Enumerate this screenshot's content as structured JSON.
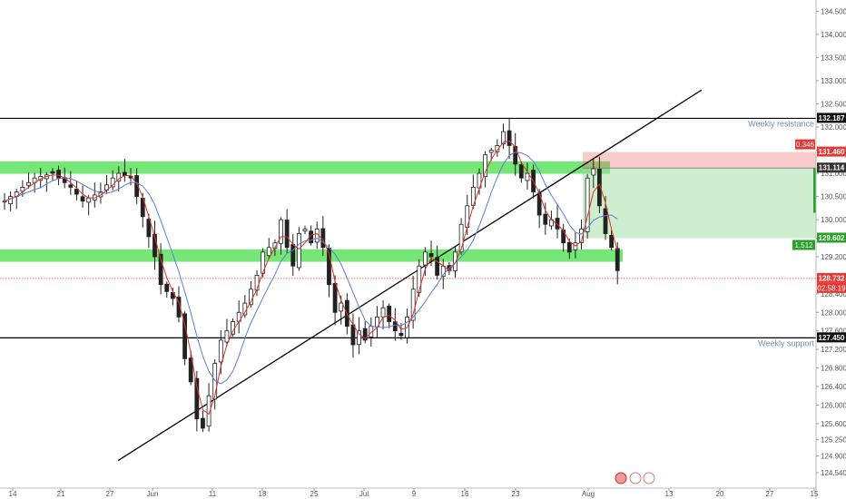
{
  "chart_data": {
    "type": "candlestick",
    "x_ticks": [
      "14",
      "21",
      "27",
      "Jun",
      "11",
      "18",
      "25",
      "Jul",
      "9",
      "16",
      "23",
      "Aug",
      "13",
      "20",
      "27",
      "15"
    ],
    "y_ticks": [
      124.54,
      124.9,
      125.25,
      125.6,
      126.0,
      126.4,
      126.8,
      127.2,
      127.6,
      128.0,
      128.4,
      129.2,
      129.6,
      130.0,
      130.5,
      131.0,
      131.5,
      132.0,
      132.5,
      133.0,
      133.5,
      134.0,
      134.5
    ],
    "ylim": [
      124.3,
      135.0
    ],
    "levels": [
      {
        "name": "weekly-resistance",
        "value": 132.187,
        "label": "132.187",
        "annotation": "Weekly resistance",
        "color": "#000000"
      },
      {
        "name": "weekly-support",
        "value": 127.45,
        "label": "127.450",
        "annotation": "Weekly support",
        "color": "#000000"
      }
    ],
    "zones": [
      {
        "name": "upper-zone",
        "low": 131.05,
        "high": 131.2,
        "color": "#5ee35e"
      },
      {
        "name": "lower-zone",
        "low": 129.15,
        "high": 129.3,
        "color": "#5ee35e"
      }
    ],
    "position": {
      "entry": 131.114,
      "entry_label": "131.114",
      "stop": 131.46,
      "stop_label": "131.460",
      "target": 129.602,
      "target_label": "129.602",
      "risk_label": "0.346",
      "reward_label": "1.512",
      "risk_color": "#f26b6b",
      "reward_color": "#2aa12a"
    },
    "current_price": {
      "value": 128.732,
      "label": "128.732",
      "countdown": "02:58:19",
      "color": "#e53935"
    },
    "trendline": {
      "start": {
        "x": "27",
        "y": 124.8
      },
      "end": {
        "x": "27 Aug",
        "y": 132.8
      }
    },
    "series_path": [
      [
        0,
        130.4
      ],
      [
        2,
        130.6
      ],
      [
        5,
        130.9
      ],
      [
        8,
        131.0
      ],
      [
        11,
        130.7
      ],
      [
        13,
        130.4
      ],
      [
        16,
        130.6
      ],
      [
        18,
        130.9
      ],
      [
        19,
        131.0
      ],
      [
        21,
        130.9
      ],
      [
        22,
        130.5
      ],
      [
        25,
        129.2
      ],
      [
        26,
        128.6
      ],
      [
        28,
        128.3
      ],
      [
        29,
        127.9
      ],
      [
        30,
        127.0
      ],
      [
        31,
        126.5
      ],
      [
        32,
        125.7
      ],
      [
        33,
        125.5
      ],
      [
        34,
        126.2
      ],
      [
        35,
        126.9
      ],
      [
        36,
        127.4
      ],
      [
        38,
        127.8
      ],
      [
        40,
        128.2
      ],
      [
        42,
        128.8
      ],
      [
        43,
        129.3
      ],
      [
        45,
        129.5
      ],
      [
        46,
        130.0
      ],
      [
        47,
        129.4
      ],
      [
        48,
        129.0
      ],
      [
        49,
        129.7
      ],
      [
        50,
        129.8
      ],
      [
        51,
        129.5
      ],
      [
        52,
        129.8
      ],
      [
        53,
        129.4
      ],
      [
        54,
        128.6
      ],
      [
        55,
        128.0
      ],
      [
        56,
        128.2
      ],
      [
        57,
        127.7
      ],
      [
        58,
        127.3
      ],
      [
        59,
        127.6
      ],
      [
        60,
        127.4
      ],
      [
        61,
        127.7
      ],
      [
        62,
        127.9
      ],
      [
        63,
        128.1
      ],
      [
        64,
        127.8
      ],
      [
        65,
        127.6
      ],
      [
        66,
        127.5
      ],
      [
        67,
        127.9
      ],
      [
        68,
        128.5
      ],
      [
        69,
        129.0
      ],
      [
        70,
        129.3
      ],
      [
        71,
        129.2
      ],
      [
        72,
        128.8
      ],
      [
        73,
        129.0
      ],
      [
        74,
        128.9
      ],
      [
        75,
        129.3
      ],
      [
        76,
        129.9
      ],
      [
        77,
        130.3
      ],
      [
        78,
        130.7
      ],
      [
        79,
        131.0
      ],
      [
        80,
        131.4
      ],
      [
        81,
        131.5
      ],
      [
        82,
        131.6
      ],
      [
        83,
        131.9
      ],
      [
        84,
        131.6
      ],
      [
        85,
        131.2
      ],
      [
        86,
        130.9
      ],
      [
        87,
        131.0
      ],
      [
        88,
        130.6
      ],
      [
        89,
        130.1
      ],
      [
        90,
        129.9
      ],
      [
        91,
        130.0
      ],
      [
        92,
        129.8
      ],
      [
        93,
        129.5
      ],
      [
        94,
        129.3
      ],
      [
        95,
        129.5
      ],
      [
        96,
        129.8
      ],
      [
        97,
        130.9
      ],
      [
        98,
        131.1
      ],
      [
        99,
        130.3
      ],
      [
        100,
        129.7
      ],
      [
        101,
        129.4
      ],
      [
        102,
        128.9
      ]
    ]
  }
}
